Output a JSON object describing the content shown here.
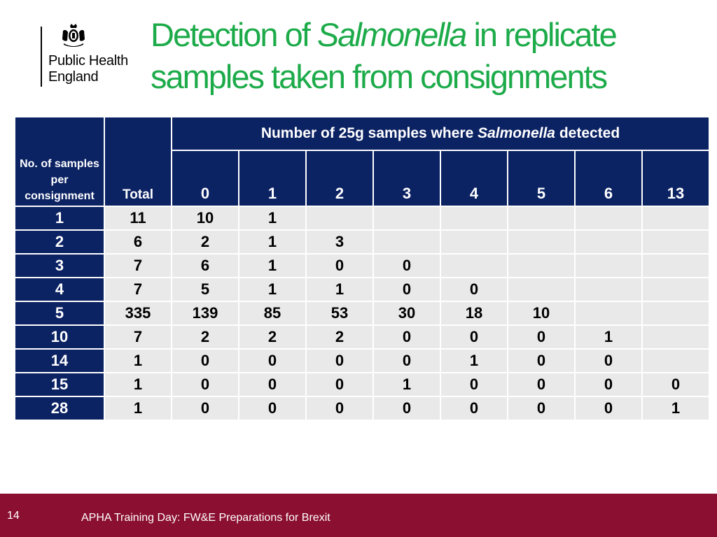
{
  "logo": {
    "org_line1": "Public Health",
    "org_line2": "England",
    "crest_icon": "royal-crest-icon"
  },
  "title": {
    "part1": "Detection of ",
    "italic": "Salmonella",
    "part2": " in replicate",
    "line2": "samples taken from consignments"
  },
  "table": {
    "corner_label": "No. of samples per consignment",
    "total_label": "Total",
    "group_header_pre": "Number of 25g samples where ",
    "group_header_italic": "Salmonella",
    "group_header_post": " detected",
    "columns": [
      "0",
      "1",
      "2",
      "3",
      "4",
      "5",
      "6",
      "13"
    ],
    "rows": [
      {
        "label": "1",
        "total": "11",
        "cells": [
          "10",
          "1",
          "",
          "",
          "",
          "",
          "",
          ""
        ]
      },
      {
        "label": "2",
        "total": "6",
        "cells": [
          "2",
          "1",
          "3",
          "",
          "",
          "",
          "",
          ""
        ]
      },
      {
        "label": "3",
        "total": "7",
        "cells": [
          "6",
          "1",
          "0",
          "0",
          "",
          "",
          "",
          ""
        ]
      },
      {
        "label": "4",
        "total": "7",
        "cells": [
          "5",
          "1",
          "1",
          "0",
          "0",
          "",
          "",
          ""
        ]
      },
      {
        "label": "5",
        "total": "335",
        "cells": [
          "139",
          "85",
          "53",
          "30",
          "18",
          "10",
          "",
          ""
        ]
      },
      {
        "label": "10",
        "total": "7",
        "cells": [
          "2",
          "2",
          "2",
          "0",
          "0",
          "0",
          "1",
          ""
        ]
      },
      {
        "label": "14",
        "total": "1",
        "cells": [
          "0",
          "0",
          "0",
          "0",
          "1",
          "0",
          "0",
          ""
        ]
      },
      {
        "label": "15",
        "total": "1",
        "cells": [
          "0",
          "0",
          "0",
          "1",
          "0",
          "0",
          "0",
          "0"
        ]
      },
      {
        "label": "28",
        "total": "1",
        "cells": [
          "0",
          "0",
          "0",
          "0",
          "0",
          "0",
          "0",
          "1"
        ]
      }
    ]
  },
  "footer": {
    "page_number": "14",
    "text": "APHA Training Day: FW&E Preparations for Brexit"
  },
  "colors": {
    "title_green": "#1dab4a",
    "header_navy": "#0b2263",
    "cell_grey": "#e9e9ea",
    "footer_maroon": "#8b0f30"
  }
}
